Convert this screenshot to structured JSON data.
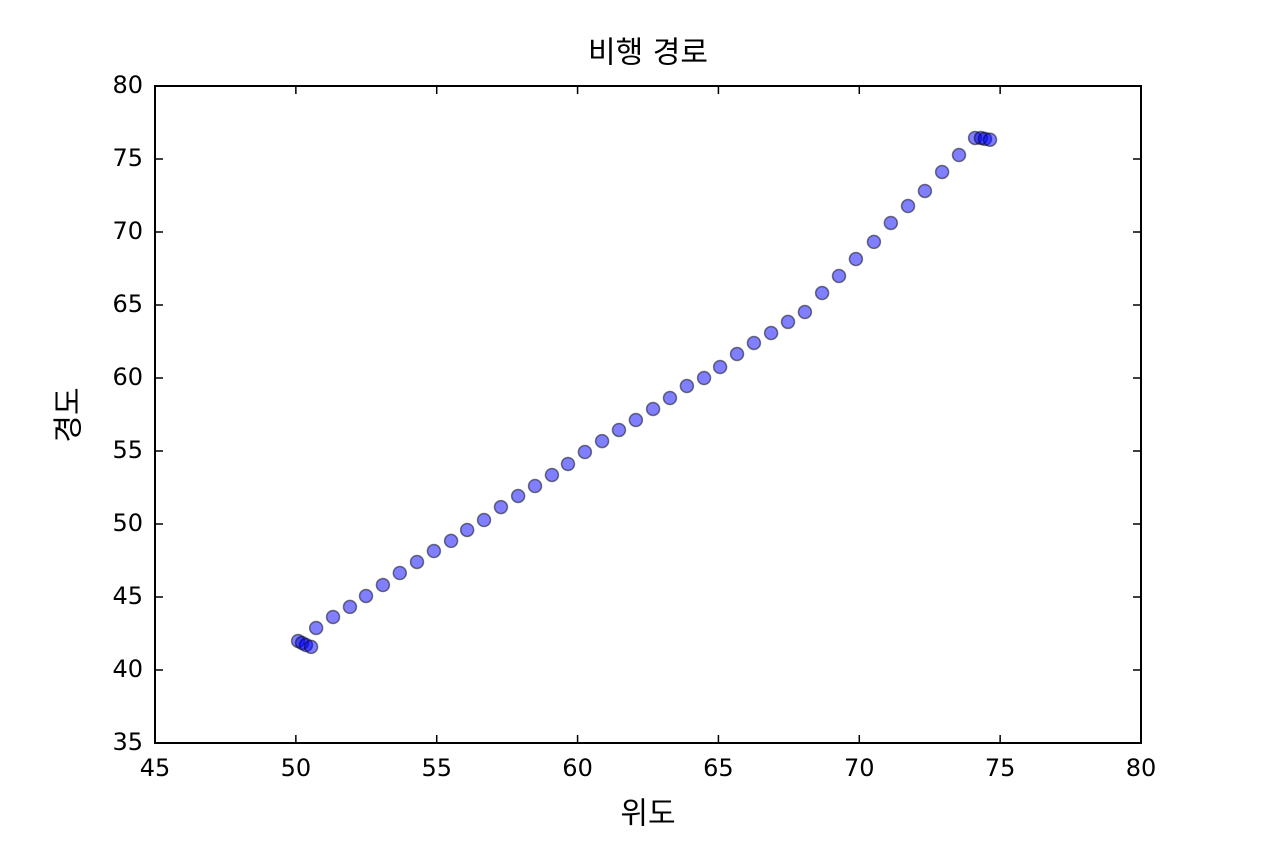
{
  "chart_data": {
    "type": "scatter",
    "title": "비행 경로",
    "x_label": "위도",
    "y_label": "경도",
    "series": [
      {
        "color": "#0000ff",
        "x": [
          50.08,
          50.22,
          50.36,
          50.54,
          50.72,
          51.32,
          51.92,
          52.49,
          53.09,
          53.69,
          54.3,
          54.9,
          55.51,
          56.08,
          56.68,
          57.28,
          57.89,
          58.49,
          59.09,
          59.66,
          60.26,
          60.87,
          61.47,
          62.07,
          62.68,
          63.28,
          63.88,
          64.49,
          65.06,
          65.66,
          66.26,
          66.87,
          67.47,
          68.07,
          68.68,
          69.28,
          69.88,
          70.52,
          71.12,
          71.73,
          72.33,
          72.94,
          73.54,
          74.11,
          74.32,
          74.46,
          74.64
        ],
        "values": [
          41.99,
          41.85,
          41.71,
          41.58,
          42.88,
          43.63,
          44.32,
          45.07,
          45.82,
          46.64,
          47.4,
          48.15,
          48.84,
          49.59,
          50.27,
          51.16,
          51.92,
          52.6,
          53.36,
          54.11,
          54.93,
          55.68,
          56.44,
          57.12,
          57.88,
          58.63,
          59.45,
          60.0,
          60.75,
          61.64,
          62.4,
          63.08,
          63.84,
          64.52,
          65.82,
          66.99,
          68.15,
          69.32,
          70.62,
          71.78,
          72.81,
          74.11,
          75.27,
          76.44,
          76.44,
          76.38,
          76.32
        ]
      }
    ],
    "xlim": [
      45,
      80
    ],
    "ylim": [
      35,
      80
    ],
    "xticks": [
      45,
      50,
      55,
      60,
      65,
      70,
      75,
      80
    ],
    "yticks": [
      35,
      40,
      45,
      50,
      55,
      60,
      65,
      70,
      75,
      80
    ]
  }
}
